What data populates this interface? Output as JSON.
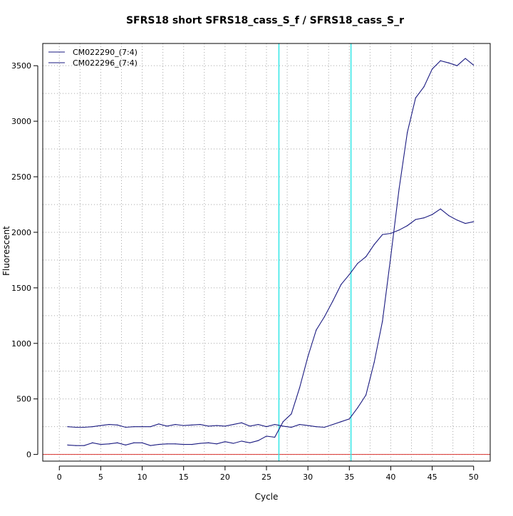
{
  "chart_data": {
    "type": "line",
    "title": "SFRS18 short SFRS18_cass_S_f / SFRS18_cass_S_r",
    "xlabel": "Cycle",
    "ylabel": "Fluorescent",
    "xlim": [
      -2,
      52
    ],
    "ylim": [
      -60,
      3700
    ],
    "xticks": [
      0,
      5,
      10,
      15,
      20,
      25,
      30,
      35,
      40,
      45,
      50
    ],
    "yticks": [
      0,
      500,
      1000,
      1500,
      2000,
      2500,
      3000,
      3500
    ],
    "grid": true,
    "grid_x": [
      2.5,
      7.5,
      12.5,
      17.5,
      22.5,
      27.5,
      32.5,
      37.5,
      42.5,
      47.5
    ],
    "grid_y": [
      250,
      750,
      1250,
      1750,
      2250,
      2750,
      3250
    ],
    "legend_position": "top-left",
    "threshold_lines": [
      26.5,
      35.2
    ],
    "baseline": 0,
    "colors": {
      "series": "#1a1a80",
      "threshold": "#33e6e6",
      "baseline": "#d9312c",
      "grid": "#a6a6a6"
    },
    "series": [
      {
        "name": "CM022290_(7:4)",
        "x": [
          1,
          2,
          3,
          4,
          5,
          6,
          7,
          8,
          9,
          10,
          11,
          12,
          13,
          14,
          15,
          16,
          17,
          18,
          19,
          20,
          21,
          22,
          23,
          24,
          25,
          26,
          27,
          28,
          29,
          30,
          31,
          32,
          33,
          34,
          35,
          36,
          37,
          38,
          39,
          40,
          41,
          42,
          43,
          44,
          45,
          46,
          47,
          48,
          49,
          50
        ],
        "values": [
          85,
          80,
          80,
          105,
          90,
          95,
          105,
          85,
          105,
          105,
          80,
          90,
          95,
          95,
          90,
          90,
          100,
          105,
          95,
          115,
          100,
          120,
          105,
          125,
          165,
          155,
          295,
          365,
          600,
          880,
          1120,
          1240,
          1380,
          1530,
          1620,
          1720,
          1780,
          1890,
          1980,
          1990,
          2020,
          2060,
          2115,
          2130,
          2160,
          2210,
          2150,
          2110,
          2080,
          2095
        ]
      },
      {
        "name": "CM022296_(7:4)",
        "x": [
          1,
          2,
          3,
          4,
          5,
          6,
          7,
          8,
          9,
          10,
          11,
          12,
          13,
          14,
          15,
          16,
          17,
          18,
          19,
          20,
          21,
          22,
          23,
          24,
          25,
          26,
          27,
          28,
          29,
          30,
          31,
          32,
          33,
          34,
          35,
          36,
          37,
          38,
          39,
          40,
          41,
          42,
          43,
          44,
          45,
          46,
          47,
          48,
          49,
          50
        ],
        "values": [
          250,
          245,
          245,
          250,
          260,
          270,
          265,
          245,
          250,
          250,
          250,
          275,
          255,
          270,
          260,
          265,
          270,
          255,
          260,
          255,
          270,
          285,
          255,
          270,
          250,
          270,
          255,
          245,
          270,
          260,
          250,
          245,
          270,
          295,
          320,
          420,
          535,
          830,
          1200,
          1780,
          2390,
          2900,
          3210,
          3310,
          3470,
          3545,
          3525,
          3500,
          3565,
          3505
        ]
      }
    ]
  }
}
